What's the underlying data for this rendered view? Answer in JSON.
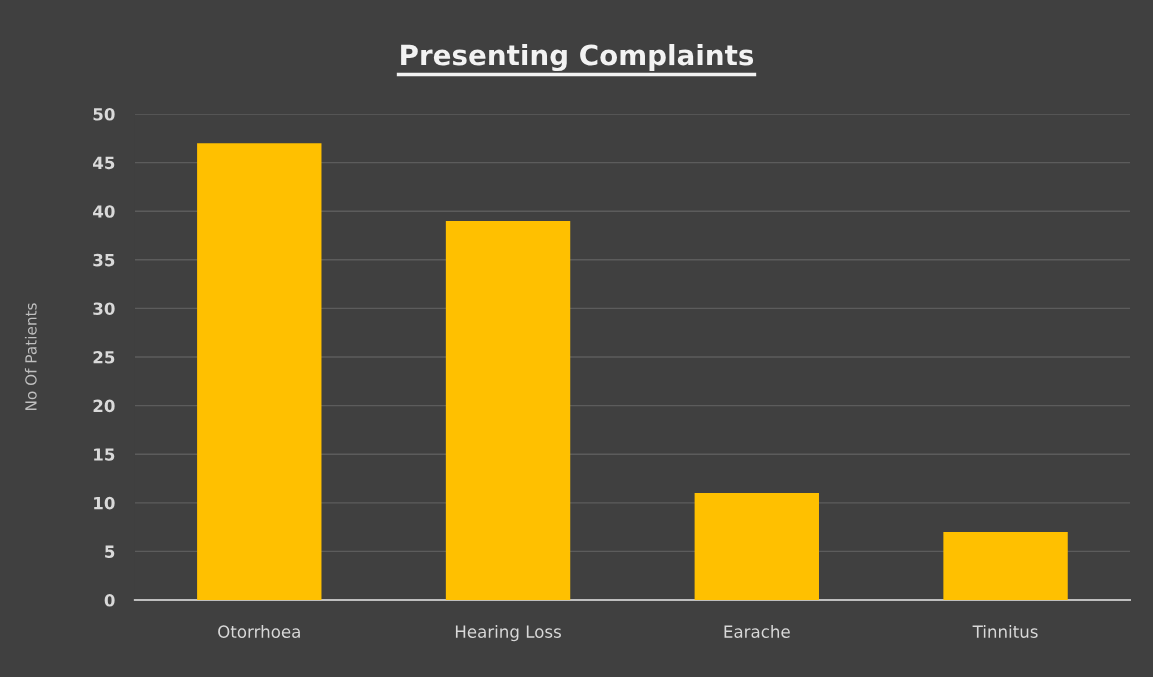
{
  "chart_data": {
    "type": "bar",
    "title": "Presenting Complaints",
    "ylabel": "No Of Patients",
    "categories": [
      "Otorrhoea",
      "Hearing Loss",
      "Earache",
      "Tinnitus"
    ],
    "values": [
      47,
      39,
      11,
      7
    ],
    "color": "#ffc000",
    "ylim": [
      0,
      50
    ],
    "yticks": [
      0,
      5,
      10,
      15,
      20,
      25,
      30,
      35,
      40,
      45,
      50
    ],
    "grid": "y"
  }
}
